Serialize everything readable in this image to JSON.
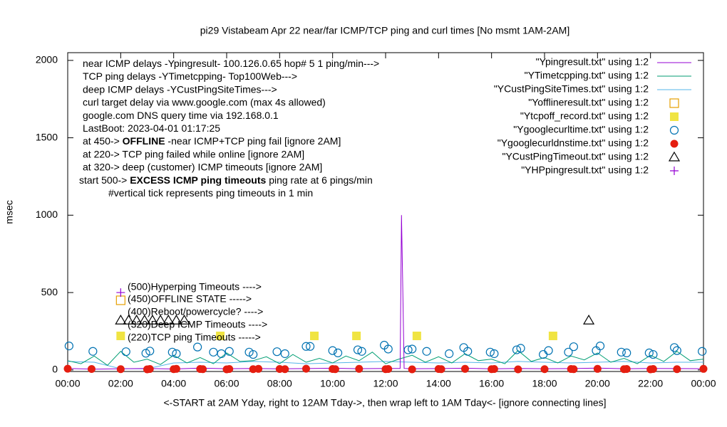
{
  "chart_data": {
    "type": "line",
    "title": "pi29 Vistabeam Apr 22  near/far ICMP/TCP ping and curl times [No msmt 1AM-2AM]",
    "x_label": "<-START at 2AM Yday, right to 12AM Tday->, then wrap left to 1AM Tday<- [ignore connecting lines]",
    "y_label": "msec",
    "xlim": [
      0,
      24
    ],
    "ylim": [
      -10,
      2050
    ],
    "xticks": [
      {
        "value": 0,
        "label": "00:00"
      },
      {
        "value": 2,
        "label": "02:00"
      },
      {
        "value": 4,
        "label": "04:00"
      },
      {
        "value": 6,
        "label": "06:00"
      },
      {
        "value": 8,
        "label": "08:00"
      },
      {
        "value": 10,
        "label": "10:00"
      },
      {
        "value": 12,
        "label": "12:00"
      },
      {
        "value": 14,
        "label": "14:00"
      },
      {
        "value": 16,
        "label": "16:00"
      },
      {
        "value": 18,
        "label": "18:00"
      },
      {
        "value": 20,
        "label": "20:00"
      },
      {
        "value": 22,
        "label": "22:00"
      },
      {
        "value": 24,
        "label": "00:00"
      }
    ],
    "yticks": [
      0,
      500,
      1000,
      1500,
      2000
    ],
    "legend": "top-right",
    "notes": [
      [
        "near ICMP delays -Ypingresult- 100.126.0.65 hop# 5 1 ping/min--->"
      ],
      [
        "TCP ping delays -YTimetcpping- Top100Web--->"
      ],
      [
        "deep ICMP delays -YCustPingSiteTimes--->"
      ],
      [
        "curl target delay via www.google.com (max 4s allowed)"
      ],
      [
        "google.com DNS query time via 192.168.0.1"
      ],
      [
        "LastBoot: 2023-04-01 01:17:25"
      ],
      [
        "at 450-> ",
        "OFFLINE",
        " -near ICMP+TCP ping fail [ignore 2AM]"
      ],
      [
        "at 220-> TCP ping failed while online [ignore 2AM]"
      ],
      [
        "at 320-> deep (customer) ICMP timeouts [ignore 2AM]"
      ],
      [
        "start 500-> ",
        "EXCESS ICMP ping timeouts",
        " ping rate at 6 pings/min"
      ],
      [
        "#vertical tick represents ping timeouts in 1 min"
      ]
    ],
    "annotations": [
      "(500)Hyperping Timeouts ---->",
      "(450)OFFLINE STATE ----->",
      "(400)Reboot/powercycle? ---->",
      "(320)Deep ICMP Timeouts ---->",
      "(220)TCP ping Timeouts ----->"
    ],
    "series": [
      {
        "name": "\"Ypingresult.txt\" using 1:2",
        "color": "#9400d3",
        "style": "line",
        "x": [
          0,
          1,
          2,
          3,
          4,
          5,
          6,
          7,
          8,
          9,
          10,
          11,
          12,
          12.55,
          12.6,
          12.65,
          12.7,
          13,
          14,
          15,
          16,
          17,
          18,
          19,
          20,
          21,
          22,
          23,
          24
        ],
        "values": [
          10,
          5,
          8,
          10,
          6,
          12,
          8,
          10,
          7,
          9,
          11,
          8,
          10,
          10,
          1000,
          500,
          10,
          8,
          9,
          11,
          7,
          10,
          8,
          9,
          12,
          8,
          10,
          9,
          8
        ]
      },
      {
        "name": "\"YTimetcpping.txt\" using 1:2",
        "color": "#009e73",
        "style": "line",
        "x": [
          0,
          0.5,
          1,
          1.5,
          2,
          2.5,
          3,
          3.5,
          4,
          4.5,
          5,
          5.5,
          6,
          6.5,
          7,
          7.5,
          8,
          8.5,
          9,
          9.5,
          10,
          10.5,
          11,
          11.5,
          12,
          12.5,
          13,
          13.5,
          14,
          14.5,
          15,
          15.5,
          16,
          16.5,
          17,
          17.5,
          18,
          18.5,
          19,
          19.5,
          20,
          20.5,
          21,
          21.5,
          22,
          22.5,
          23,
          23.5,
          24
        ],
        "values": [
          60,
          40,
          90,
          30,
          120,
          50,
          70,
          35,
          95,
          45,
          80,
          40,
          110,
          55,
          60,
          85,
          40,
          100,
          50,
          75,
          45,
          90,
          60,
          115,
          40,
          70,
          95,
          50,
          85,
          45,
          105,
          60,
          70,
          40,
          125,
          55,
          80,
          45,
          90,
          65,
          110,
          50,
          75,
          40,
          95,
          55,
          120,
          60,
          70
        ]
      },
      {
        "name": "\"YCustPingSiteTimes.txt\" using 1:2",
        "color": "#56b4e9",
        "style": "line",
        "x": [
          0,
          1,
          2,
          3,
          4,
          5,
          6,
          7,
          8,
          9,
          10,
          11,
          12,
          13,
          14,
          15,
          16,
          17,
          18,
          19,
          20,
          21,
          22,
          23,
          24
        ],
        "values": [
          55,
          50,
          8,
          8,
          45,
          50,
          45,
          55,
          50,
          40,
          45,
          50,
          55,
          50,
          45,
          50,
          45,
          55,
          50,
          45,
          50,
          55,
          45,
          50,
          50
        ]
      },
      {
        "name": "\"Yofflineresult.txt\" using 1:2",
        "color": "#e69f00",
        "style": "open-square",
        "x": [
          2.0
        ],
        "values": [
          450
        ]
      },
      {
        "name": "\"Ytcpoff_record.txt\" using 1:2",
        "color": "#f0e442",
        "style": "filled-square",
        "x": [
          2.0,
          5.76,
          9.31,
          10.9,
          13.18,
          18.32
        ],
        "values": [
          220,
          220,
          220,
          220,
          220,
          220
        ]
      },
      {
        "name": "\"Ygooglecurltime.txt\" using 1:2",
        "color": "#0072b2",
        "style": "open-circle",
        "x": [
          0.05,
          0.95,
          2.2,
          2.95,
          3.1,
          3.95,
          4.1,
          4.9,
          5.5,
          5.8,
          6.1,
          6.85,
          7.0,
          7.9,
          8.2,
          9.0,
          9.15,
          10.0,
          10.2,
          10.95,
          11.1,
          11.95,
          12.1,
          12.85,
          13.0,
          13.55,
          14.4,
          14.95,
          15.1,
          15.95,
          16.1,
          16.95,
          17.1,
          17.95,
          18.15,
          18.9,
          19.1,
          19.95,
          20.1,
          20.9,
          21.1,
          21.95,
          22.1,
          22.9,
          23.0,
          23.95
        ],
        "values": [
          155,
          120,
          118,
          108,
          122,
          115,
          105,
          148,
          115,
          105,
          120,
          115,
          100,
          118,
          105,
          152,
          152,
          125,
          110,
          130,
          120,
          160,
          135,
          130,
          135,
          120,
          105,
          145,
          120,
          115,
          105,
          130,
          140,
          100,
          125,
          115,
          150,
          125,
          155,
          115,
          110,
          110,
          100,
          145,
          125,
          120
        ]
      },
      {
        "name": "\"Ygooglecurldnstime.txt\" using 1:2",
        "color": "#e51e10",
        "style": "filled-circle",
        "x": [
          0,
          0.9,
          2.0,
          3.0,
          3.1,
          4.0,
          4.1,
          5.0,
          5.1,
          6.0,
          6.1,
          7.0,
          7.2,
          8.0,
          8.2,
          9.0,
          10.0,
          10.1,
          11.0,
          12.0,
          12.1,
          13.0,
          14.0,
          14.1,
          15.0,
          16.0,
          16.1,
          17.0,
          18.0,
          19.0,
          19.1,
          20.0,
          21.0,
          21.1,
          22.0,
          22.1,
          23.0,
          24.0
        ],
        "values": [
          8,
          6,
          5,
          4,
          6,
          5,
          7,
          6,
          5,
          4,
          6,
          5,
          7,
          6,
          5,
          8,
          6,
          5,
          7,
          5,
          6,
          4,
          6,
          5,
          7,
          5,
          6,
          4,
          5,
          6,
          5,
          7,
          5,
          6,
          4,
          6,
          5,
          7
        ]
      },
      {
        "name": "\"YCustPingTimeout.txt\" using 1:2",
        "color": "#000000",
        "style": "open-triangle",
        "x": [
          2.0,
          2.3,
          2.6,
          2.9,
          3.2,
          3.5,
          3.8,
          4.1,
          4.4,
          19.67
        ],
        "values": [
          320,
          320,
          320,
          320,
          320,
          320,
          320,
          320,
          320,
          320
        ]
      },
      {
        "name": "\"YHPpingresult.txt\" using 1:2",
        "color": "#9400d3",
        "style": "plus",
        "x": [
          2.0
        ],
        "values": [
          500
        ]
      }
    ]
  }
}
